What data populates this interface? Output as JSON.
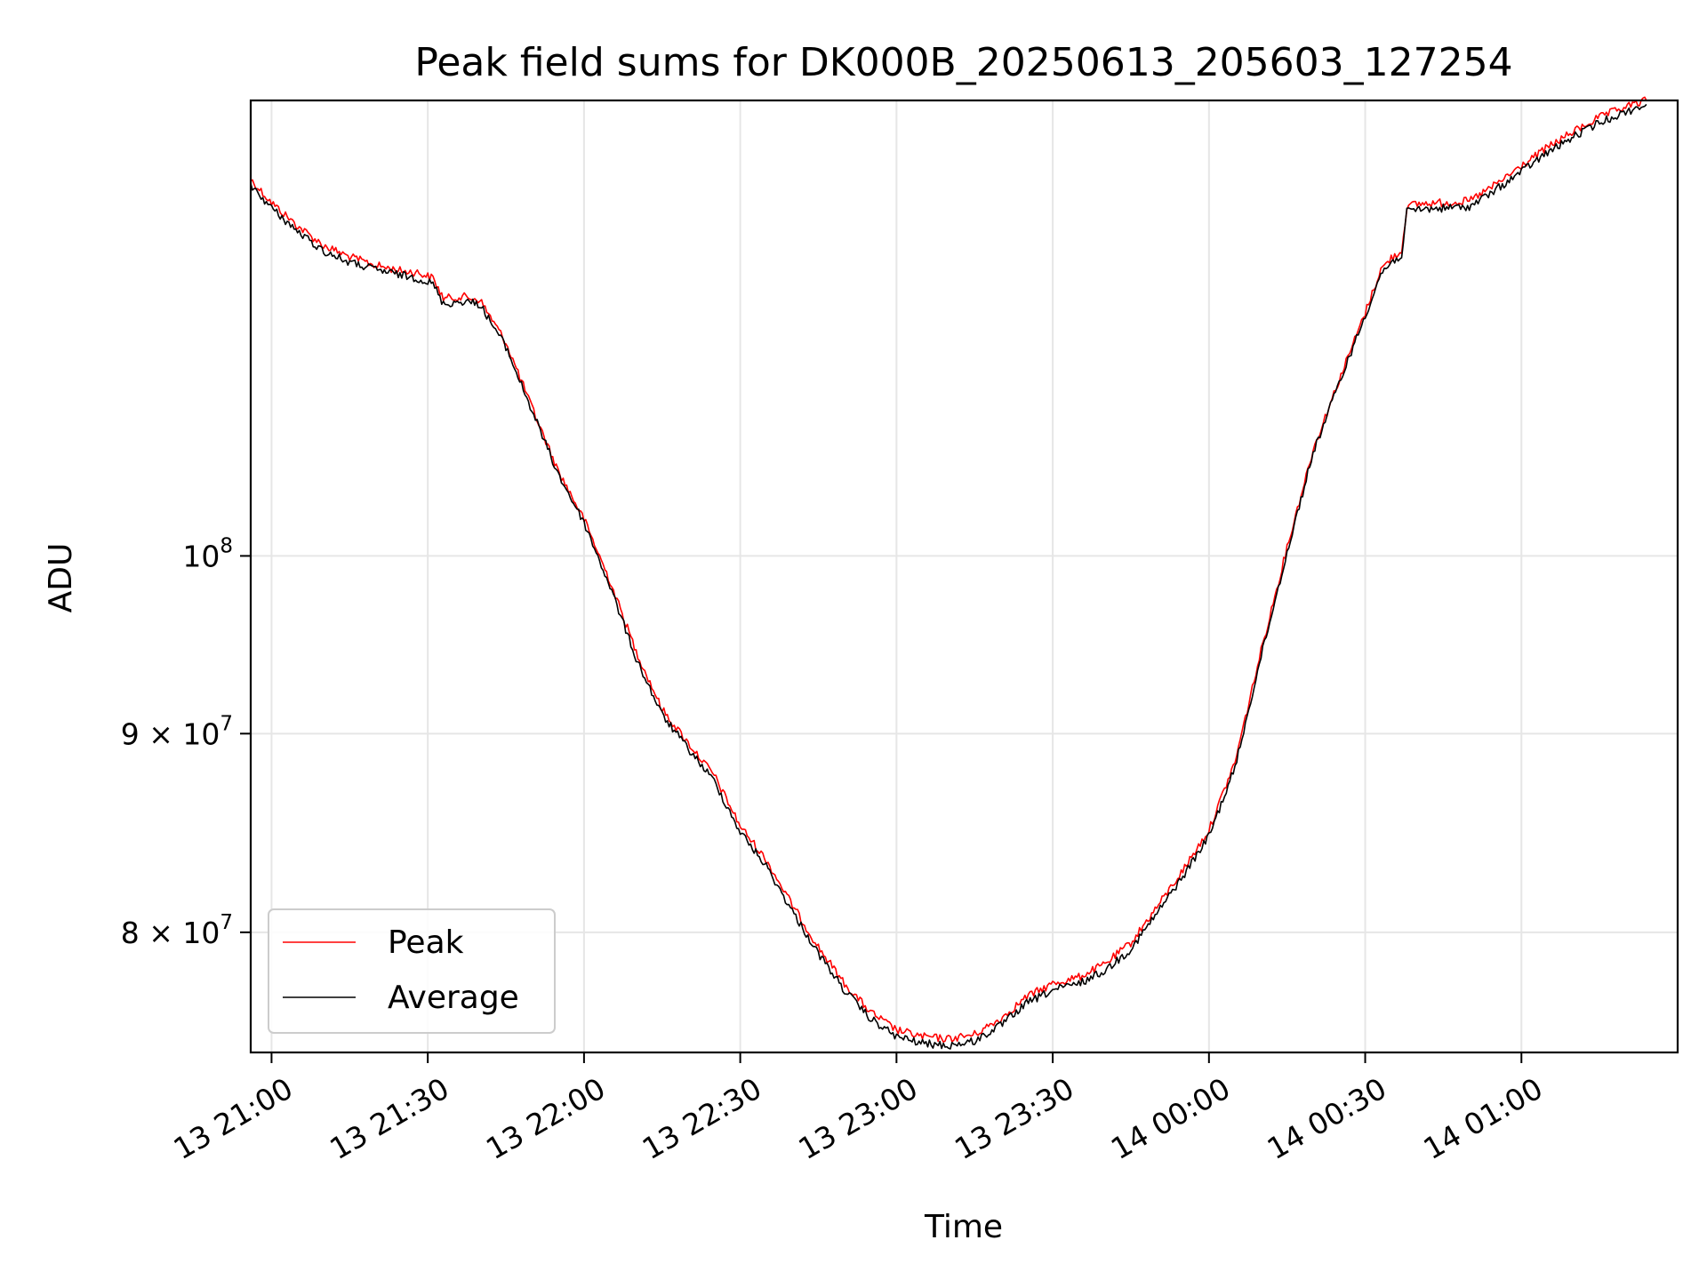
{
  "chart_data": {
    "type": "line",
    "title": "Peak field sums for DK000B_20250613_205603_127254",
    "xlabel": "Time",
    "ylabel": "ADU",
    "x_unit": "date-time",
    "x_range": [
      "2025-06-13 20:56",
      "2025-06-14 01:30"
    ],
    "y_scale": "log",
    "y_range": [
      74500000,
      131000000
    ],
    "grid": true,
    "legend_position": "lower-left",
    "x_ticks": [
      {
        "t": "2025-06-13 21:00",
        "label": "13 21:00"
      },
      {
        "t": "2025-06-13 21:30",
        "label": "13 21:30"
      },
      {
        "t": "2025-06-13 22:00",
        "label": "13 22:00"
      },
      {
        "t": "2025-06-13 22:30",
        "label": "13 22:30"
      },
      {
        "t": "2025-06-13 23:00",
        "label": "13 23:00"
      },
      {
        "t": "2025-06-13 23:30",
        "label": "13 23:30"
      },
      {
        "t": "2025-06-14 00:00",
        "label": "14 00:00"
      },
      {
        "t": "2025-06-14 00:30",
        "label": "14 00:30"
      },
      {
        "t": "2025-06-14 01:00",
        "label": "14 01:00"
      }
    ],
    "y_ticks": [
      {
        "value": 80000000,
        "mantissa": "8",
        "base": "10",
        "exp": "7"
      },
      {
        "value": 90000000,
        "mantissa": "9",
        "base": "10",
        "exp": "7"
      },
      {
        "value": 100000000,
        "mantissa": "",
        "base": "10",
        "exp": "8"
      }
    ],
    "series": [
      {
        "name": "Peak",
        "color": "#ff0000",
        "points": [
          [
            "2025-06-13 20:56",
            125000000
          ],
          [
            "2025-06-13 21:00",
            123300000
          ],
          [
            "2025-06-13 21:05",
            121600000
          ],
          [
            "2025-06-13 21:10",
            120200000
          ],
          [
            "2025-06-13 21:15",
            119400000
          ],
          [
            "2025-06-13 21:20",
            118800000
          ],
          [
            "2025-06-13 21:25",
            118400000
          ],
          [
            "2025-06-13 21:28",
            118300000
          ],
          [
            "2025-06-13 21:31",
            117900000
          ],
          [
            "2025-06-13 21:33",
            116500000
          ],
          [
            "2025-06-13 21:37",
            116600000
          ],
          [
            "2025-06-13 21:40",
            116400000
          ],
          [
            "2025-06-13 21:45",
            113500000
          ],
          [
            "2025-06-13 21:50",
            109200000
          ],
          [
            "2025-06-13 21:55",
            105200000
          ],
          [
            "2025-06-13 22:00",
            102200000
          ],
          [
            "2025-06-13 22:05",
            98500000
          ],
          [
            "2025-06-13 22:10",
            94500000
          ],
          [
            "2025-06-13 22:15",
            91300000
          ],
          [
            "2025-06-13 22:20",
            89500000
          ],
          [
            "2025-06-13 22:25",
            87800000
          ],
          [
            "2025-06-13 22:30",
            85200000
          ],
          [
            "2025-06-13 22:35",
            83500000
          ],
          [
            "2025-06-13 22:40",
            81300000
          ],
          [
            "2025-06-13 22:45",
            79300000
          ],
          [
            "2025-06-13 22:50",
            77600000
          ],
          [
            "2025-06-13 22:55",
            76300000
          ],
          [
            "2025-06-13 23:00",
            75500000
          ],
          [
            "2025-06-13 23:05",
            75200000
          ],
          [
            "2025-06-13 23:10",
            75100000
          ],
          [
            "2025-06-13 23:15",
            75300000
          ],
          [
            "2025-06-13 23:20",
            76000000
          ],
          [
            "2025-06-13 23:25",
            77000000
          ],
          [
            "2025-06-13 23:30",
            77600000
          ],
          [
            "2025-06-13 23:35",
            77900000
          ],
          [
            "2025-06-13 23:40",
            78500000
          ],
          [
            "2025-06-13 23:45",
            79500000
          ],
          [
            "2025-06-13 23:50",
            81200000
          ],
          [
            "2025-06-13 23:55",
            83000000
          ],
          [
            "2025-06-14 00:00",
            85000000
          ],
          [
            "2025-06-14 00:05",
            88500000
          ],
          [
            "2025-06-14 00:10",
            94500000
          ],
          [
            "2025-06-14 00:15",
            100500000
          ],
          [
            "2025-06-14 00:20",
            106500000
          ],
          [
            "2025-06-14 00:25",
            111000000
          ],
          [
            "2025-06-14 00:30",
            115500000
          ],
          [
            "2025-06-14 00:33",
            118500000
          ],
          [
            "2025-06-14 00:35",
            119300000
          ],
          [
            "2025-06-14 00:37",
            119800000
          ],
          [
            "2025-06-14 00:38",
            123000000
          ],
          [
            "2025-06-14 00:40",
            123200000
          ],
          [
            "2025-06-14 00:45",
            123300000
          ],
          [
            "2025-06-14 00:50",
            123400000
          ],
          [
            "2025-06-14 00:55",
            124600000
          ],
          [
            "2025-06-14 01:00",
            126000000
          ],
          [
            "2025-06-14 01:05",
            127400000
          ],
          [
            "2025-06-14 01:10",
            128600000
          ],
          [
            "2025-06-14 01:15",
            129700000
          ],
          [
            "2025-06-14 01:20",
            130500000
          ],
          [
            "2025-06-14 01:24",
            131000000
          ]
        ]
      },
      {
        "name": "Average",
        "color": "#000000",
        "points": [
          [
            "2025-06-13 20:56",
            124600000
          ],
          [
            "2025-06-13 21:00",
            122900000
          ],
          [
            "2025-06-13 21:05",
            121200000
          ],
          [
            "2025-06-13 21:10",
            119800000
          ],
          [
            "2025-06-13 21:15",
            119000000
          ],
          [
            "2025-06-13 21:20",
            118500000
          ],
          [
            "2025-06-13 21:25",
            118100000
          ],
          [
            "2025-06-13 21:28",
            117900000
          ],
          [
            "2025-06-13 21:31",
            117500000
          ],
          [
            "2025-06-13 21:33",
            116100000
          ],
          [
            "2025-06-13 21:37",
            116300000
          ],
          [
            "2025-06-13 21:40",
            116100000
          ],
          [
            "2025-06-13 21:45",
            113200000
          ],
          [
            "2025-06-13 21:50",
            109000000
          ],
          [
            "2025-06-13 21:55",
            105000000
          ],
          [
            "2025-06-13 22:00",
            102000000
          ],
          [
            "2025-06-13 22:05",
            98200000
          ],
          [
            "2025-06-13 22:10",
            94100000
          ],
          [
            "2025-06-13 22:15",
            91000000
          ],
          [
            "2025-06-13 22:20",
            89200000
          ],
          [
            "2025-06-13 22:25",
            87500000
          ],
          [
            "2025-06-13 22:30",
            84900000
          ],
          [
            "2025-06-13 22:35",
            83200000
          ],
          [
            "2025-06-13 22:40",
            81000000
          ],
          [
            "2025-06-13 22:45",
            79000000
          ],
          [
            "2025-06-13 22:50",
            77300000
          ],
          [
            "2025-06-13 22:55",
            76000000
          ],
          [
            "2025-06-13 23:00",
            75200000
          ],
          [
            "2025-06-13 23:05",
            74900000
          ],
          [
            "2025-06-13 23:10",
            74800000
          ],
          [
            "2025-06-13 23:15",
            75000000
          ],
          [
            "2025-06-13 23:20",
            75700000
          ],
          [
            "2025-06-13 23:25",
            76700000
          ],
          [
            "2025-06-13 23:30",
            77300000
          ],
          [
            "2025-06-13 23:35",
            77600000
          ],
          [
            "2025-06-13 23:40",
            78200000
          ],
          [
            "2025-06-13 23:45",
            79200000
          ],
          [
            "2025-06-13 23:50",
            80900000
          ],
          [
            "2025-06-13 23:55",
            82700000
          ],
          [
            "2025-06-14 00:00",
            84700000
          ],
          [
            "2025-06-14 00:05",
            88200000
          ],
          [
            "2025-06-14 00:10",
            94200000
          ],
          [
            "2025-06-14 00:15",
            100200000
          ],
          [
            "2025-06-14 00:20",
            106300000
          ],
          [
            "2025-06-14 00:25",
            110800000
          ],
          [
            "2025-06-14 00:30",
            115300000
          ],
          [
            "2025-06-14 00:33",
            118200000
          ],
          [
            "2025-06-14 00:35",
            119000000
          ],
          [
            "2025-06-14 00:37",
            119500000
          ],
          [
            "2025-06-14 00:38",
            122600000
          ],
          [
            "2025-06-14 00:40",
            122800000
          ],
          [
            "2025-06-14 00:45",
            122900000
          ],
          [
            "2025-06-14 00:50",
            123000000
          ],
          [
            "2025-06-14 00:55",
            124200000
          ],
          [
            "2025-06-14 01:00",
            125600000
          ],
          [
            "2025-06-14 01:05",
            127000000
          ],
          [
            "2025-06-14 01:10",
            128200000
          ],
          [
            "2025-06-14 01:15",
            129300000
          ],
          [
            "2025-06-14 01:20",
            130100000
          ],
          [
            "2025-06-14 01:24",
            130700000
          ]
        ]
      }
    ]
  }
}
